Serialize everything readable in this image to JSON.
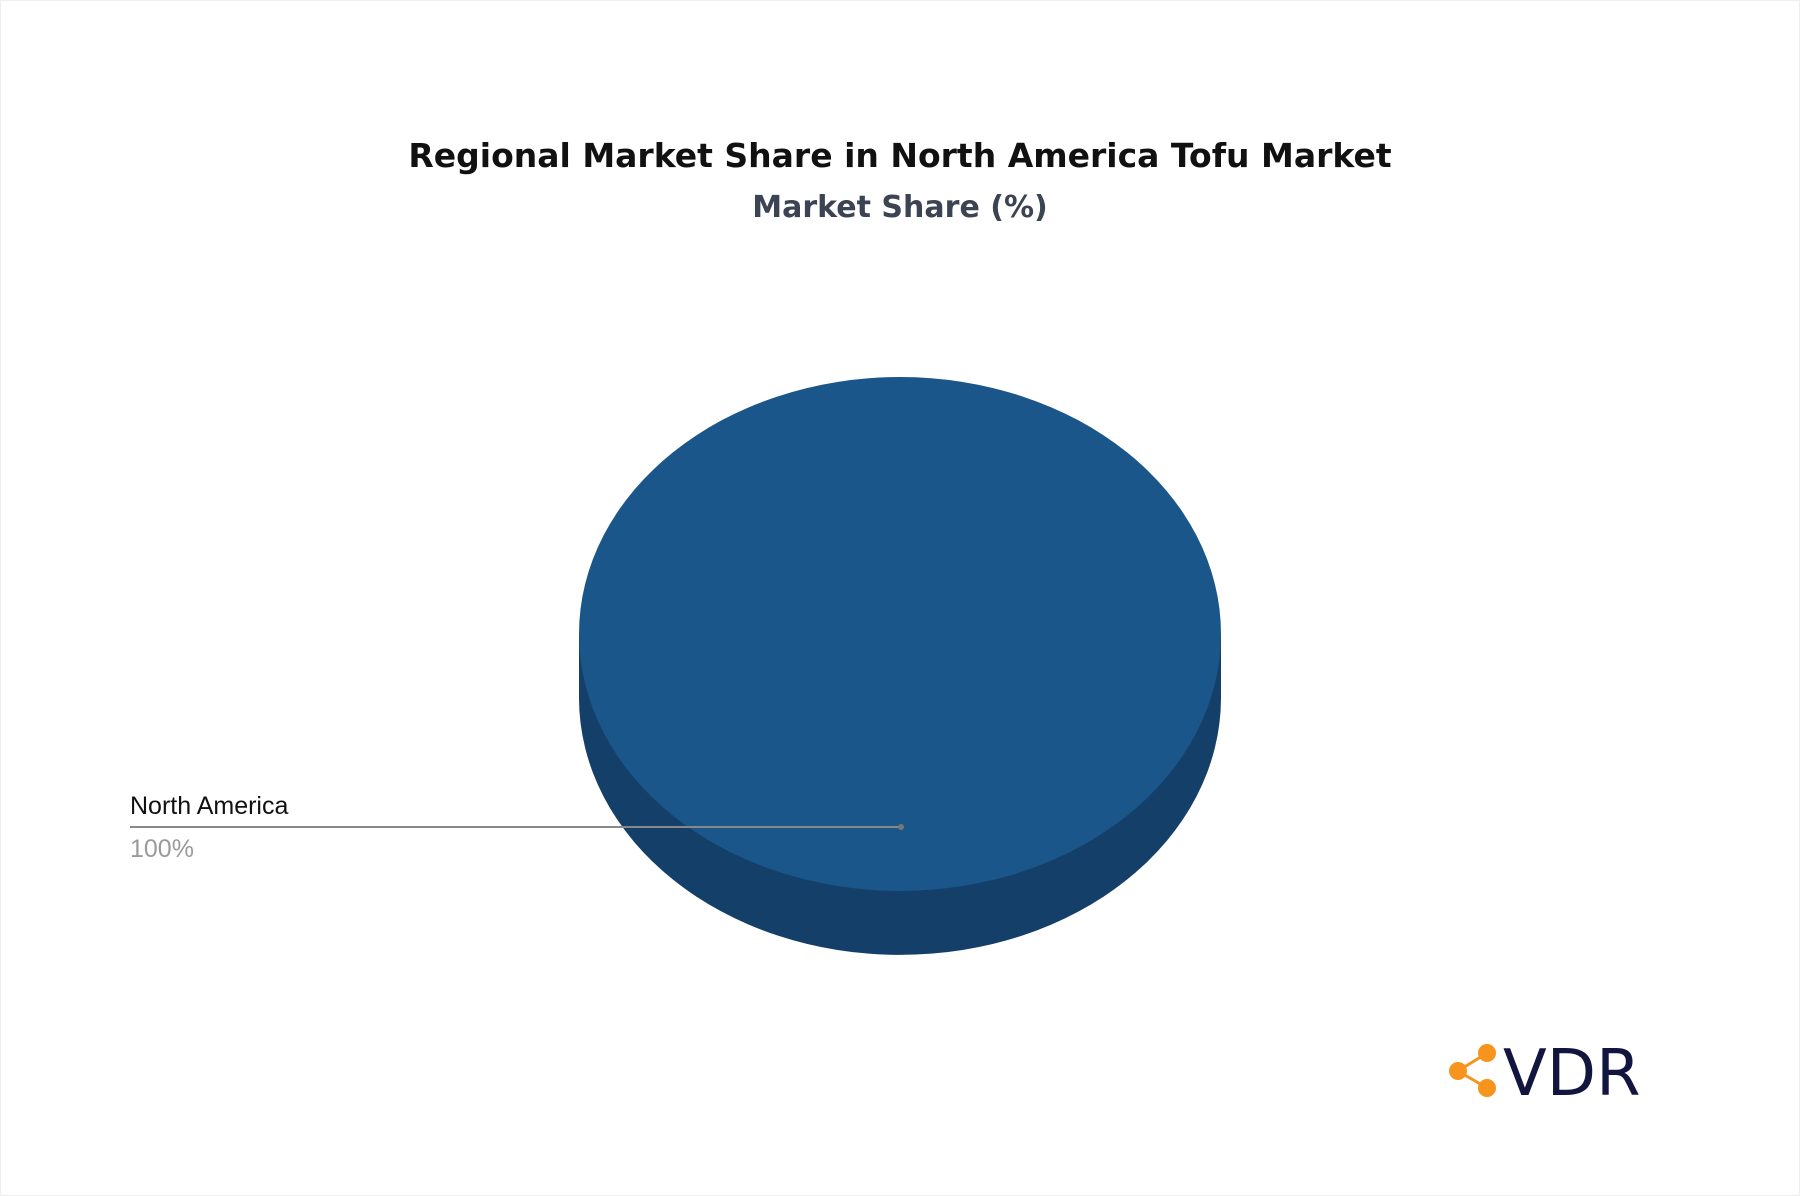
{
  "chart_data": {
    "type": "pie",
    "title": "Regional Market Share in North America Tofu Market",
    "subtitle": "Market Share (%)",
    "slices": [
      {
        "label": "North America",
        "value": 100,
        "value_label": "100%",
        "color": "#1a568a",
        "side_color": "#143f68"
      }
    ],
    "legend": "none"
  },
  "logo": {
    "text": "VDR",
    "accent": "#f7941d",
    "text_color": "#12163f"
  }
}
